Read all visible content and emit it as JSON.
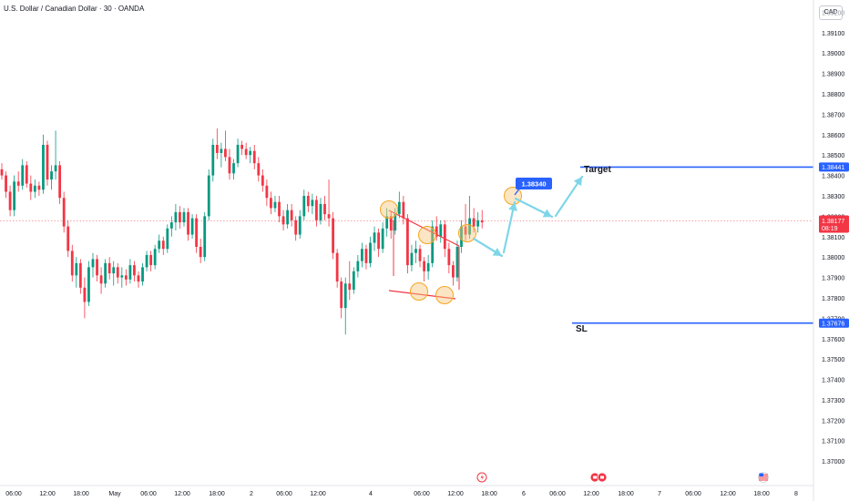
{
  "header": {
    "symbol_title": "U.S. Dollar / Canadian Dollar · 30 · OANDA",
    "currency": "CAD"
  },
  "colors": {
    "up": "#089981",
    "down": "#f23645",
    "level_line": "#2962ff",
    "current_price": "#f23645",
    "arrow": "#7fd6e8",
    "circle": "#f7c57a",
    "trendline": "#f23645"
  },
  "icons": {
    "event_1": "lightning-icon",
    "event_2": "flag-icon",
    "event_3": "us-flag-icon"
  },
  "chart_data": {
    "type": "candlestick",
    "y_axis": {
      "range": [
        1.3688,
        1.3926
      ],
      "ticks": [
        "1.39100",
        "1.39000",
        "1.38900",
        "1.38800",
        "1.38700",
        "1.38600",
        "1.38500",
        "1.38400",
        "1.38300",
        "1.38200",
        "1.38100",
        "1.38000",
        "1.37900",
        "1.37800",
        "1.37700",
        "1.37600",
        "1.37500",
        "1.37400",
        "1.37300",
        "1.37200",
        "1.37100",
        "1.37000"
      ],
      "partial_tick": "1.39200"
    },
    "x_axis": {
      "ticks": [
        {
          "label": "06:00",
          "x": 15
        },
        {
          "label": "12:00",
          "x": 52
        },
        {
          "label": "18:00",
          "x": 89
        },
        {
          "label": "May",
          "x": 126
        },
        {
          "label": "06:00",
          "x": 163
        },
        {
          "label": "12:00",
          "x": 200
        },
        {
          "label": "18:00",
          "x": 238
        },
        {
          "label": "2",
          "x": 276
        },
        {
          "label": "06:00",
          "x": 312
        },
        {
          "label": "12:00",
          "x": 349
        },
        {
          "label": "4",
          "x": 407
        },
        {
          "label": "06:00",
          "x": 463
        },
        {
          "label": "12:00",
          "x": 500
        },
        {
          "label": "18:00",
          "x": 537
        },
        {
          "label": "6",
          "x": 575
        },
        {
          "label": "06:00",
          "x": 612
        },
        {
          "label": "12:00",
          "x": 649
        },
        {
          "label": "18:00",
          "x": 687
        },
        {
          "label": "7",
          "x": 724
        },
        {
          "label": "06:00",
          "x": 761
        },
        {
          "label": "12:00",
          "x": 799
        },
        {
          "label": "18:00",
          "x": 836
        },
        {
          "label": "8",
          "x": 874
        }
      ]
    },
    "levels": {
      "target": {
        "label": "Target",
        "price": 1.38441,
        "price_label": "1.38441"
      },
      "stop_loss": {
        "label": "SL",
        "price": 1.37676,
        "price_label": "1.37676"
      },
      "entry_callout": {
        "price_label": "1.38340"
      }
    },
    "current_price": {
      "value": 1.38177,
      "price_label": "1.38177",
      "countdown": "08:19"
    },
    "candles": [
      [
        1.3843,
        1.3846,
        1.3838,
        1.384
      ],
      [
        1.384,
        1.3842,
        1.3829,
        1.3832
      ],
      [
        1.3832,
        1.3835,
        1.382,
        1.3823
      ],
      [
        1.3823,
        1.384,
        1.382,
        1.3837
      ],
      [
        1.3837,
        1.3842,
        1.3832,
        1.3835
      ],
      [
        1.3835,
        1.3848,
        1.3833,
        1.3845
      ],
      [
        1.3845,
        1.3847,
        1.3834,
        1.3836
      ],
      [
        1.3836,
        1.384,
        1.3828,
        1.3832
      ],
      [
        1.3832,
        1.3838,
        1.3829,
        1.3835
      ],
      [
        1.3835,
        1.3837,
        1.383,
        1.3833
      ],
      [
        1.3833,
        1.386,
        1.3831,
        1.3855
      ],
      [
        1.3855,
        1.3857,
        1.3835,
        1.3838
      ],
      [
        1.3838,
        1.3845,
        1.3833,
        1.3842
      ],
      [
        1.3842,
        1.3862,
        1.3838,
        1.3845
      ],
      [
        1.3845,
        1.3847,
        1.3826,
        1.3829
      ],
      [
        1.3829,
        1.3832,
        1.3812,
        1.3815
      ],
      [
        1.3815,
        1.3818,
        1.38,
        1.3803
      ],
      [
        1.3803,
        1.3806,
        1.3788,
        1.3791
      ],
      [
        1.3791,
        1.38,
        1.3785,
        1.3797
      ],
      [
        1.3797,
        1.3799,
        1.3782,
        1.3785
      ],
      [
        1.3785,
        1.379,
        1.377,
        1.3778
      ],
      [
        1.3778,
        1.3798,
        1.3776,
        1.3795
      ],
      [
        1.3795,
        1.3802,
        1.379,
        1.3799
      ],
      [
        1.3799,
        1.3801,
        1.3788,
        1.3791
      ],
      [
        1.3791,
        1.3795,
        1.3782,
        1.3787
      ],
      [
        1.3787,
        1.3799,
        1.3785,
        1.3797
      ],
      [
        1.3797,
        1.38,
        1.3789,
        1.3792
      ],
      [
        1.3792,
        1.3798,
        1.3786,
        1.3795
      ],
      [
        1.3795,
        1.3797,
        1.3787,
        1.379
      ],
      [
        1.379,
        1.3795,
        1.3785,
        1.3791
      ],
      [
        1.3791,
        1.3794,
        1.3786,
        1.3789
      ],
      [
        1.3789,
        1.3799,
        1.3787,
        1.3796
      ],
      [
        1.3796,
        1.3798,
        1.3788,
        1.3791
      ],
      [
        1.3791,
        1.3793,
        1.3785,
        1.3788
      ],
      [
        1.3788,
        1.3797,
        1.3786,
        1.3795
      ],
      [
        1.3795,
        1.3803,
        1.3793,
        1.3801
      ],
      [
        1.3801,
        1.3803,
        1.3793,
        1.3796
      ],
      [
        1.3796,
        1.3806,
        1.3794,
        1.3804
      ],
      [
        1.3804,
        1.3811,
        1.3802,
        1.3808
      ],
      [
        1.3808,
        1.381,
        1.3801,
        1.3804
      ],
      [
        1.3804,
        1.3816,
        1.3802,
        1.3814
      ],
      [
        1.3814,
        1.382,
        1.381,
        1.3817
      ],
      [
        1.3817,
        1.3826,
        1.3813,
        1.3822
      ],
      [
        1.3822,
        1.3825,
        1.3814,
        1.3817
      ],
      [
        1.3817,
        1.3824,
        1.3815,
        1.3822
      ],
      [
        1.3822,
        1.3824,
        1.3808,
        1.3811
      ],
      [
        1.3811,
        1.3821,
        1.3809,
        1.3819
      ],
      [
        1.3819,
        1.3821,
        1.3802,
        1.3805
      ],
      [
        1.3805,
        1.3809,
        1.3797,
        1.38
      ],
      [
        1.38,
        1.3822,
        1.3798,
        1.382
      ],
      [
        1.382,
        1.3843,
        1.3818,
        1.384
      ],
      [
        1.384,
        1.3858,
        1.3837,
        1.3855
      ],
      [
        1.3855,
        1.3863,
        1.3848,
        1.3851
      ],
      [
        1.3851,
        1.3856,
        1.3844,
        1.3853
      ],
      [
        1.3853,
        1.3862,
        1.3847,
        1.3849
      ],
      [
        1.3849,
        1.3853,
        1.3838,
        1.3841
      ],
      [
        1.3841,
        1.3848,
        1.3838,
        1.3846
      ],
      [
        1.3846,
        1.3858,
        1.3844,
        1.3855
      ],
      [
        1.3855,
        1.3857,
        1.385,
        1.3853
      ],
      [
        1.3853,
        1.3856,
        1.3848,
        1.385
      ],
      [
        1.385,
        1.3854,
        1.3846,
        1.3852
      ],
      [
        1.3852,
        1.3855,
        1.3843,
        1.3846
      ],
      [
        1.3846,
        1.3849,
        1.3837,
        1.384
      ],
      [
        1.384,
        1.3843,
        1.3832,
        1.3835
      ],
      [
        1.3835,
        1.3838,
        1.3825,
        1.3829
      ],
      [
        1.3829,
        1.3832,
        1.3821,
        1.3824
      ],
      [
        1.3824,
        1.383,
        1.3822,
        1.3827
      ],
      [
        1.3827,
        1.383,
        1.3817,
        1.382
      ],
      [
        1.382,
        1.3823,
        1.3813,
        1.3816
      ],
      [
        1.3816,
        1.3826,
        1.3814,
        1.3823
      ],
      [
        1.3823,
        1.3826,
        1.3815,
        1.3818
      ],
      [
        1.3818,
        1.382,
        1.3808,
        1.3811
      ],
      [
        1.3811,
        1.3823,
        1.3809,
        1.382
      ],
      [
        1.382,
        1.3833,
        1.3818,
        1.383
      ],
      [
        1.383,
        1.3832,
        1.3822,
        1.3825
      ],
      [
        1.3825,
        1.3831,
        1.3821,
        1.3828
      ],
      [
        1.3828,
        1.383,
        1.3815,
        1.3818
      ],
      [
        1.3818,
        1.3829,
        1.3816,
        1.3826
      ],
      [
        1.3826,
        1.383,
        1.3818,
        1.3821
      ],
      [
        1.3821,
        1.3838,
        1.3815,
        1.3819
      ],
      [
        1.3819,
        1.3822,
        1.3799,
        1.3802
      ],
      [
        1.3802,
        1.3804,
        1.3785,
        1.3788
      ],
      [
        1.3788,
        1.379,
        1.377,
        1.3775
      ],
      [
        1.3775,
        1.379,
        1.3762,
        1.3787
      ],
      [
        1.3787,
        1.3798,
        1.3779,
        1.3784
      ],
      [
        1.3784,
        1.3795,
        1.3782,
        1.3793
      ],
      [
        1.3793,
        1.3801,
        1.379,
        1.3798
      ],
      [
        1.3798,
        1.3807,
        1.3795,
        1.3804
      ],
      [
        1.3804,
        1.3806,
        1.3794,
        1.3797
      ],
      [
        1.3797,
        1.381,
        1.3795,
        1.3807
      ],
      [
        1.3807,
        1.3815,
        1.3803,
        1.3812
      ],
      [
        1.3812,
        1.3814,
        1.38,
        1.3804
      ],
      [
        1.3804,
        1.3817,
        1.3802,
        1.3814
      ],
      [
        1.3814,
        1.3824,
        1.381,
        1.382
      ],
      [
        1.382,
        1.3822,
        1.3809,
        1.3813
      ],
      [
        1.3813,
        1.3824,
        1.3811,
        1.3821
      ],
      [
        1.3821,
        1.3832,
        1.3819,
        1.3827
      ],
      [
        1.3827,
        1.383,
        1.3816,
        1.3819
      ],
      [
        1.3819,
        1.3821,
        1.3792,
        1.3796
      ],
      [
        1.3796,
        1.3806,
        1.3793,
        1.3802
      ],
      [
        1.3802,
        1.3808,
        1.3797,
        1.3804
      ],
      [
        1.3804,
        1.3806,
        1.3795,
        1.3798
      ],
      [
        1.3798,
        1.38,
        1.3788,
        1.3793
      ],
      [
        1.3793,
        1.3801,
        1.3789,
        1.3797
      ],
      [
        1.3797,
        1.3818,
        1.3795,
        1.3815
      ],
      [
        1.3815,
        1.382,
        1.3808,
        1.381
      ],
      [
        1.381,
        1.3818,
        1.3807,
        1.3816
      ],
      [
        1.3816,
        1.3818,
        1.38,
        1.3804
      ],
      [
        1.3804,
        1.3807,
        1.3792,
        1.3796
      ],
      [
        1.3796,
        1.3798,
        1.3786,
        1.379
      ],
      [
        1.379,
        1.3808,
        1.3788,
        1.3805
      ],
      [
        1.3805,
        1.3818,
        1.3802,
        1.3815
      ],
      [
        1.3815,
        1.3826,
        1.3808,
        1.3811
      ],
      [
        1.3811,
        1.383,
        1.3809,
        1.3819
      ],
      [
        1.3819,
        1.3824,
        1.3812,
        1.3815
      ],
      [
        1.3815,
        1.3822,
        1.3812,
        1.3818
      ],
      [
        1.3818,
        1.3823,
        1.3814,
        1.3817
      ]
    ]
  }
}
